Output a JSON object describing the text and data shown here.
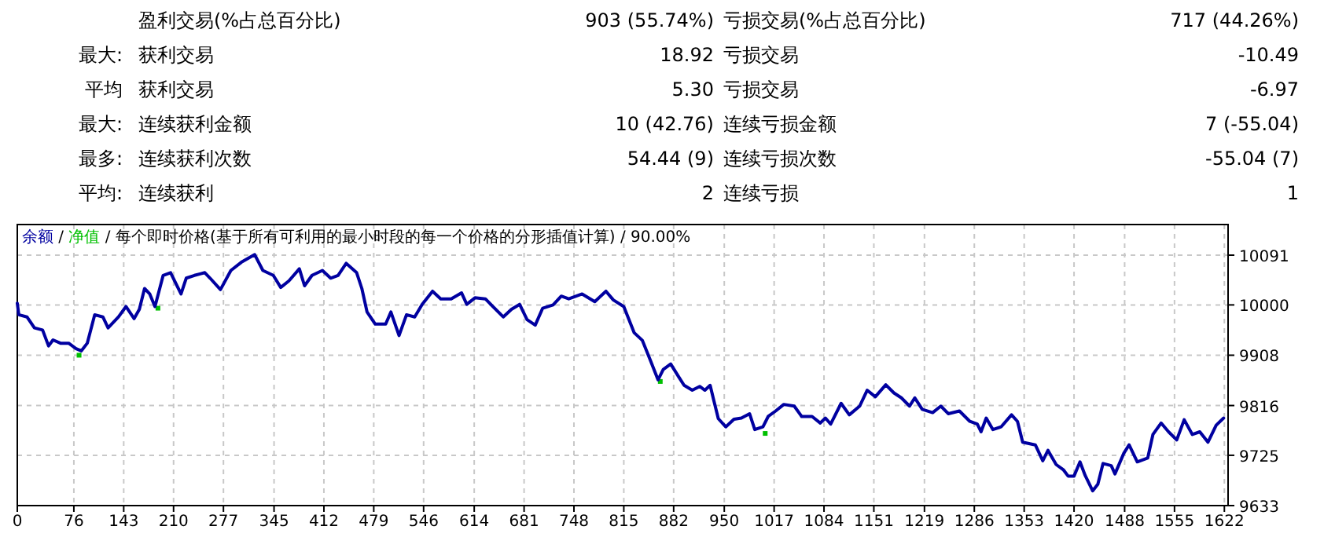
{
  "chart_data": {
    "type": "line",
    "title": "余额 / 净值 / 每个即时价格(基于所有可利用的最小时段的每一个价格的分形插值计算) / 90.00%",
    "annotations": [
      "盈利交易(%占总百分比)",
      "903 (55.74%)",
      "亏损交易(%占总百分比)",
      "717 (44.26%)",
      "最大:",
      "获利交易",
      "18.92",
      "亏损交易",
      "-10.49",
      "平均",
      "获利交易",
      "5.30",
      "亏损交易",
      "-6.97",
      "最大:",
      "连续获利金额",
      "10 (42.76)",
      "连续亏损金额",
      "7 (-55.04)",
      "最多:",
      "连续获利次数",
      "54.44 (9)",
      "连续亏损次数",
      "-55.04 (7)",
      "平均:",
      "连续获利",
      "2",
      "连续亏损",
      "1"
    ],
    "xlim": [
      0,
      1627
    ],
    "ylim": [
      9633,
      10147
    ],
    "xticks": [
      0,
      76,
      143,
      210,
      277,
      345,
      412,
      479,
      546,
      614,
      681,
      748,
      815,
      882,
      950,
      1017,
      1084,
      1151,
      1219,
      1286,
      1353,
      1420,
      1488,
      1555,
      1622
    ],
    "yticks": [
      9633,
      9725,
      9816,
      9908,
      10000,
      10091
    ],
    "grid": true,
    "series": [
      {
        "color": "#0000a0",
        "x": [
          0,
          2,
          13,
          23,
          34,
          42,
          48,
          58,
          69,
          79,
          86,
          94,
          104,
          115,
          122,
          136,
          146,
          157,
          164,
          171,
          178,
          185,
          196,
          206,
          220,
          227,
          238,
          252,
          259,
          273,
          287,
          301,
          319,
          330,
          344,
          354,
          365,
          379,
          386,
          396,
          410,
          421,
          431,
          442,
          456,
          463,
          470,
          481,
          495,
          502,
          513,
          523,
          534,
          544,
          558,
          569,
          583,
          597,
          604,
          615,
          629,
          639,
          653,
          664,
          675,
          685,
          696,
          706,
          720,
          731,
          741,
          759,
          776,
          791,
          801,
          815,
          829,
          840,
          850,
          861,
          868,
          878,
          889,
          896,
          907,
          917,
          924,
          931,
          936,
          942,
          952,
          963,
          973,
          984,
          991,
          1002,
          1009,
          1019,
          1030,
          1044,
          1054,
          1068,
          1079,
          1086,
          1093,
          1107,
          1118,
          1132,
          1142,
          1153,
          1167,
          1178,
          1188,
          1199,
          1206,
          1216,
          1230,
          1241,
          1251,
          1266,
          1280,
          1290,
          1295,
          1302,
          1311,
          1322,
          1336,
          1344,
          1351,
          1368,
          1378,
          1385,
          1396,
          1406,
          1412,
          1420,
          1428,
          1435,
          1445,
          1452,
          1459,
          1470,
          1475,
          1487,
          1494,
          1505,
          1519,
          1526,
          1537,
          1547,
          1558,
          1568,
          1579,
          1589,
          1600,
          1611,
          1621
        ],
        "values": [
          10003,
          9982,
          9978,
          9958,
          9954,
          9925,
          9936,
          9930,
          9930,
          9920,
          9916,
          9930,
          9982,
          9978,
          9958,
          9978,
          9997,
          9975,
          9992,
          10030,
          10020,
          9997,
          10054,
          10059,
          10020,
          10049,
          10054,
          10059,
          10049,
          10028,
          10063,
          10078,
          10092,
          10063,
          10054,
          10032,
          10044,
          10066,
          10035,
          10054,
          10063,
          10049,
          10054,
          10076,
          10059,
          10030,
          9987,
          9965,
          9965,
          9987,
          9944,
          9982,
          9978,
          10001,
          10025,
          10011,
          10011,
          10022,
          10001,
          10013,
          10011,
          9997,
          9978,
          9992,
          10001,
          9973,
          9963,
          9994,
          10000,
          10016,
          10011,
          10020,
          10006,
          10025,
          10009,
          9997,
          9949,
          9935,
          9901,
          9863,
          9882,
          9892,
          9868,
          9853,
          9844,
          9851,
          9844,
          9853,
          9825,
          9792,
          9777,
          9791,
          9793,
          9801,
          9772,
          9777,
          9796,
          9806,
          9818,
          9815,
          9796,
          9796,
          9784,
          9793,
          9782,
          9820,
          9799,
          9815,
          9844,
          9832,
          9854,
          9839,
          9830,
          9815,
          9830,
          9809,
          9803,
          9815,
          9801,
          9806,
          9787,
          9782,
          9768,
          9793,
          9772,
          9777,
          9799,
          9787,
          9749,
          9744,
          9715,
          9734,
          9708,
          9698,
          9687,
          9687,
          9713,
          9688,
          9660,
          9672,
          9710,
          9706,
          9691,
          9729,
          9744,
          9713,
          9720,
          9763,
          9784,
          9768,
          9753,
          9790,
          9763,
          9768,
          9749,
          9780,
          9793
        ]
      },
      {
        "color": "#00c000",
        "type": "scatter",
        "marker": "square",
        "x": [
          83,
          189,
          864,
          1005
        ],
        "values": [
          9908,
          9994,
          9860,
          9765
        ]
      }
    ]
  }
}
